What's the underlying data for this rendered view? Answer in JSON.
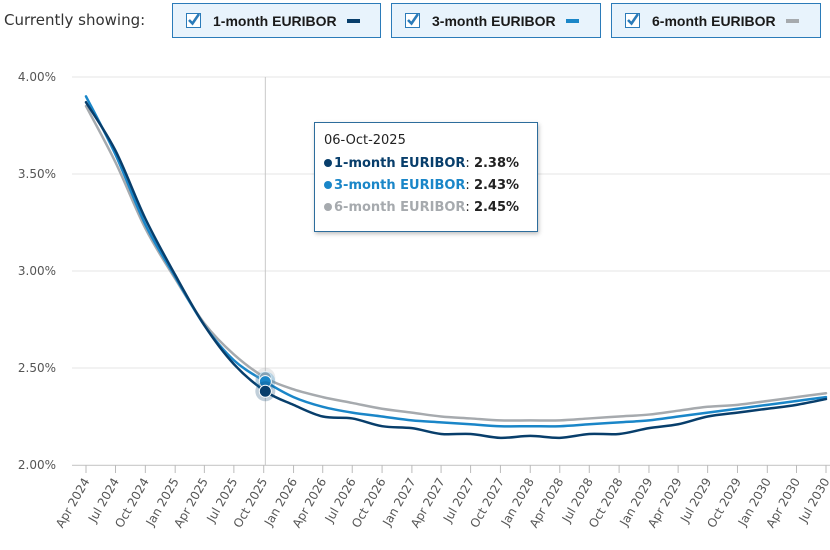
{
  "header": {
    "showing_label": "Currently showing:",
    "toggles": [
      {
        "label": "1-month EURIBOR",
        "checked": true,
        "color": "#083e6b"
      },
      {
        "label": "3-month EURIBOR",
        "checked": true,
        "color": "#1a86c8"
      },
      {
        "label": "6-month EURIBOR",
        "checked": true,
        "color": "#a6aaae"
      }
    ]
  },
  "tooltip": {
    "date": "06-Oct-2025",
    "rows": [
      {
        "name": "1-month EURIBOR",
        "value": "2.38%"
      },
      {
        "name": "3-month EURIBOR",
        "value": "2.43%"
      },
      {
        "name": "6-month EURIBOR",
        "value": "2.45%"
      }
    ]
  },
  "chart_data": {
    "type": "line",
    "y_unit": "%",
    "ylim": [
      2.0,
      4.0
    ],
    "y_ticks": [
      2.0,
      2.5,
      3.0,
      3.5,
      4.0
    ],
    "y_tick_labels": [
      "2.00%",
      "2.50%",
      "3.00%",
      "3.50%",
      "4.00%"
    ],
    "x_range": [
      "2024-04-01",
      "2030-07-01"
    ],
    "x_ticks": [
      "2024-04-01",
      "2024-07-01",
      "2024-10-01",
      "2025-01-01",
      "2025-04-01",
      "2025-07-01",
      "2025-10-01",
      "2026-01-01",
      "2026-04-01",
      "2026-07-01",
      "2026-10-01",
      "2027-01-01",
      "2027-04-01",
      "2027-07-01",
      "2027-10-01",
      "2028-01-01",
      "2028-04-01",
      "2028-07-01",
      "2028-10-01",
      "2029-01-01",
      "2029-04-01",
      "2029-07-01",
      "2029-10-01",
      "2030-01-01",
      "2030-04-01",
      "2030-07-01"
    ],
    "x_tick_labels": [
      "Apr 2024",
      "Jul 2024",
      "Oct 2024",
      "Jan 2025",
      "Apr 2025",
      "Jul 2025",
      "Oct 2025",
      "Jan 2026",
      "Apr 2026",
      "Jul 2026",
      "Oct 2026",
      "Jan 2027",
      "Apr 2027",
      "Jul 2027",
      "Oct 2027",
      "Jan 2028",
      "Apr 2028",
      "Jul 2028",
      "Oct 2028",
      "Jan 2029",
      "Apr 2029",
      "Jul 2029",
      "Oct 2029",
      "Jan 2030",
      "Apr 2030",
      "Jul 2030"
    ],
    "grid": true,
    "crosshair_date": "2025-10-06",
    "series": [
      {
        "name": "1-month EURIBOR",
        "color": "#083e6b",
        "x": [
          "2024-04-01",
          "2024-07-01",
          "2024-10-01",
          "2025-01-01",
          "2025-04-01",
          "2025-07-01",
          "2025-10-06",
          "2026-01-01",
          "2026-04-01",
          "2026-07-01",
          "2026-10-01",
          "2027-01-01",
          "2027-04-01",
          "2027-07-01",
          "2027-10-01",
          "2028-01-01",
          "2028-04-01",
          "2028-07-01",
          "2028-10-01",
          "2029-01-01",
          "2029-04-01",
          "2029-07-01",
          "2029-10-01",
          "2030-01-01",
          "2030-04-01",
          "2030-07-01"
        ],
        "values": [
          3.87,
          3.62,
          3.27,
          2.98,
          2.72,
          2.52,
          2.38,
          2.31,
          2.25,
          2.24,
          2.2,
          2.19,
          2.16,
          2.16,
          2.14,
          2.15,
          2.14,
          2.16,
          2.16,
          2.19,
          2.21,
          2.25,
          2.27,
          2.29,
          2.31,
          2.34
        ]
      },
      {
        "name": "3-month EURIBOR",
        "color": "#1a86c8",
        "x": [
          "2024-04-01",
          "2024-07-01",
          "2024-10-01",
          "2025-01-01",
          "2025-04-01",
          "2025-07-01",
          "2025-10-06",
          "2026-01-01",
          "2026-04-01",
          "2026-07-01",
          "2026-10-01",
          "2027-01-01",
          "2027-04-01",
          "2027-07-01",
          "2027-10-01",
          "2028-01-01",
          "2028-04-01",
          "2028-07-01",
          "2028-10-01",
          "2029-01-01",
          "2029-04-01",
          "2029-07-01",
          "2029-10-01",
          "2030-01-01",
          "2030-04-01",
          "2030-07-01"
        ],
        "values": [
          3.9,
          3.6,
          3.24,
          2.97,
          2.72,
          2.54,
          2.43,
          2.35,
          2.3,
          2.27,
          2.25,
          2.23,
          2.22,
          2.21,
          2.2,
          2.2,
          2.2,
          2.21,
          2.22,
          2.23,
          2.25,
          2.27,
          2.29,
          2.31,
          2.33,
          2.35
        ]
      },
      {
        "name": "6-month EURIBOR",
        "color": "#a6aaae",
        "x": [
          "2024-04-01",
          "2024-07-01",
          "2024-10-01",
          "2025-01-01",
          "2025-04-01",
          "2025-07-01",
          "2025-10-06",
          "2026-01-01",
          "2026-04-01",
          "2026-07-01",
          "2026-10-01",
          "2027-01-01",
          "2027-04-01",
          "2027-07-01",
          "2027-10-01",
          "2028-01-01",
          "2028-04-01",
          "2028-07-01",
          "2028-10-01",
          "2029-01-01",
          "2029-04-01",
          "2029-07-01",
          "2029-10-01",
          "2030-01-01",
          "2030-04-01",
          "2030-07-01"
        ],
        "values": [
          3.85,
          3.56,
          3.22,
          2.96,
          2.73,
          2.57,
          2.45,
          2.39,
          2.35,
          2.32,
          2.29,
          2.27,
          2.25,
          2.24,
          2.23,
          2.23,
          2.23,
          2.24,
          2.25,
          2.26,
          2.28,
          2.3,
          2.31,
          2.33,
          2.35,
          2.37
        ]
      }
    ]
  }
}
